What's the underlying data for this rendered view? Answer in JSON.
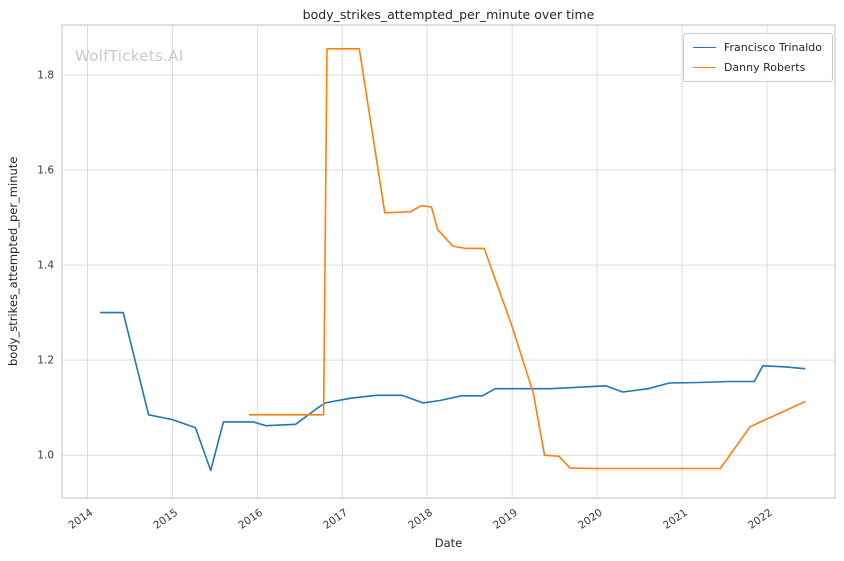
{
  "window": {
    "title": "body_strikes_attempted_per_minute over time"
  },
  "watermark": "WolfTickets.AI",
  "chart_data": {
    "type": "line",
    "title": "body_strikes_attempted_per_minute over time",
    "xlabel": "Date",
    "ylabel": "body_strikes_attempted_per_minute",
    "xlim": [
      2013.7,
      2022.8
    ],
    "ylim": [
      0.91,
      1.905
    ],
    "grid": true,
    "legend_position": "upper right",
    "xticks": [
      2014,
      2015,
      2016,
      2017,
      2018,
      2019,
      2020,
      2021,
      2022
    ],
    "xticklabels": [
      "2014",
      "2015",
      "2016",
      "2017",
      "2018",
      "2019",
      "2020",
      "2021",
      "2022"
    ],
    "yticks": [
      1.0,
      1.2,
      1.4,
      1.6,
      1.8
    ],
    "yticklabels": [
      "1.0",
      "1.2",
      "1.4",
      "1.6",
      "1.8"
    ],
    "series": [
      {
        "name": "Francisco Trinaldo",
        "color": "#1f77b4",
        "x": [
          2014.15,
          2014.42,
          2014.72,
          2015.0,
          2015.27,
          2015.45,
          2015.6,
          2015.95,
          2016.1,
          2016.45,
          2016.7,
          2016.8,
          2017.1,
          2017.4,
          2017.7,
          2017.95,
          2018.15,
          2018.4,
          2018.65,
          2018.8,
          2019.1,
          2019.45,
          2019.8,
          2020.1,
          2020.3,
          2020.6,
          2020.85,
          2021.2,
          2021.55,
          2021.85,
          2021.95,
          2022.2,
          2022.45
        ],
        "y": [
          1.3,
          1.3,
          1.085,
          1.075,
          1.058,
          0.968,
          1.07,
          1.07,
          1.062,
          1.065,
          1.098,
          1.11,
          1.12,
          1.126,
          1.126,
          1.11,
          1.115,
          1.125,
          1.125,
          1.14,
          1.14,
          1.14,
          1.143,
          1.146,
          1.133,
          1.14,
          1.152,
          1.153,
          1.155,
          1.155,
          1.188,
          1.186,
          1.182
        ]
      },
      {
        "name": "Danny Roberts",
        "color": "#ff7f0e",
        "x": [
          2015.9,
          2016.4,
          2016.78,
          2016.82,
          2017.2,
          2017.5,
          2017.8,
          2017.93,
          2018.05,
          2018.12,
          2018.3,
          2018.45,
          2018.67,
          2019.0,
          2019.25,
          2019.38,
          2019.55,
          2019.68,
          2019.95,
          2020.4,
          2020.9,
          2021.45,
          2021.8,
          2022.45
        ],
        "y": [
          1.085,
          1.085,
          1.085,
          1.855,
          1.855,
          1.51,
          1.512,
          1.525,
          1.522,
          1.475,
          1.44,
          1.435,
          1.435,
          1.27,
          1.13,
          1.0,
          0.998,
          0.973,
          0.972,
          0.972,
          0.972,
          0.972,
          1.06,
          1.113
        ]
      }
    ]
  }
}
